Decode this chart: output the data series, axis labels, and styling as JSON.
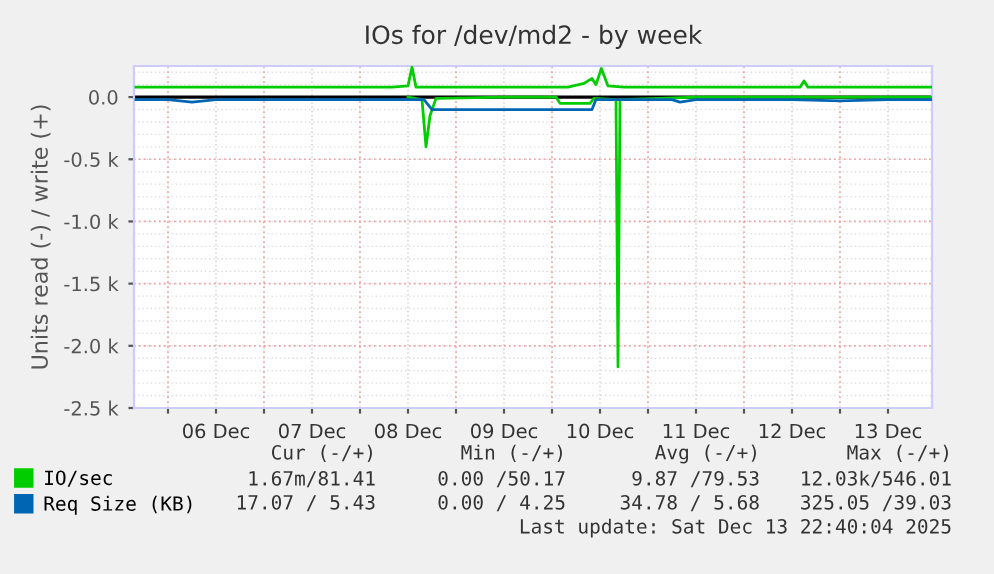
{
  "chart_data": {
    "type": "line",
    "title": "IOs for /dev/md2 - by week",
    "ylabel": "Units read (-) / write (+)",
    "series": [
      {
        "name": "IO/sec",
        "color": "#00cc00",
        "x": [
          "2025-12-05T16:00",
          "2025-12-06T00:00",
          "2025-12-06T08:00",
          "2025-12-06T16:00",
          "2025-12-07T00:00",
          "2025-12-07T08:00",
          "2025-12-07T16:00",
          "2025-12-08T00:00",
          "2025-12-08T08:00",
          "2025-12-08T12:00",
          "2025-12-08T13:00",
          "2025-12-08T14:00",
          "2025-12-08T20:00",
          "2025-12-09T04:00",
          "2025-12-09T12:00",
          "2025-12-09T20:00",
          "2025-12-10T04:00",
          "2025-12-10T08:00",
          "2025-12-10T10:00",
          "2025-12-10T11:00",
          "2025-12-10T12:20",
          "2025-12-10T14:00",
          "2025-12-10T18:00",
          "2025-12-11T00:00",
          "2025-12-11T08:00",
          "2025-12-11T16:00",
          "2025-12-12T00:00",
          "2025-12-12T08:00",
          "2025-12-12T14:00",
          "2025-12-12T15:00",
          "2025-12-12T16:00",
          "2025-12-13T00:00",
          "2025-12-13T08:00",
          "2025-12-13T16:00",
          "2025-12-13T22:40"
        ],
        "values": [
          80,
          80,
          80,
          80,
          80,
          80,
          80,
          80,
          80,
          90,
          240,
          80,
          80,
          80,
          80,
          80,
          80,
          110,
          150,
          100,
          230,
          90,
          80,
          80,
          80,
          80,
          80,
          80,
          80,
          130,
          80,
          80,
          80,
          80,
          80
        ]
      },
      {
        "color": "#00cc00",
        "x": [
          "2025-12-08T12:00",
          "2025-12-08T15:30",
          "2025-12-08T16:30",
          "2025-12-08T17:30",
          "2025-12-08T19:00",
          "2025-12-09T12:00",
          "2025-12-10T01:00",
          "2025-12-10T02:00",
          "2025-12-10T09:30",
          "2025-12-10T10:30",
          "2025-12-10T16:00",
          "2025-12-10T16:30",
          "2025-12-10T17:00",
          "2025-12-11T12:00",
          "2025-12-13T22:40"
        ],
        "values": [
          0,
          -20,
          -400,
          -150,
          -10,
          0,
          0,
          -50,
          -50,
          -10,
          -20,
          -2170,
          -20,
          0,
          0
        ]
      },
      {
        "name": "Req Size (KB)",
        "color": "#0066b3",
        "x": [
          "2025-12-05T16:00",
          "2025-12-06T00:00",
          "2025-12-06T06:00",
          "2025-12-06T12:00",
          "2025-12-07T00:00",
          "2025-12-07T12:00",
          "2025-12-08T00:00",
          "2025-12-08T12:00",
          "2025-12-08T16:00",
          "2025-12-08T18:00",
          "2025-12-09T06:00",
          "2025-12-09T18:00",
          "2025-12-10T06:00",
          "2025-12-10T10:00",
          "2025-12-10T11:00",
          "2025-12-10T20:00",
          "2025-12-11T06:00",
          "2025-12-11T08:00",
          "2025-12-11T12:00",
          "2025-12-12T00:00",
          "2025-12-12T12:00",
          "2025-12-13T00:00",
          "2025-12-13T12:00",
          "2025-12-13T22:40"
        ],
        "values": [
          -20,
          -20,
          -40,
          -20,
          -20,
          -20,
          -20,
          -20,
          -20,
          -100,
          -100,
          -100,
          -100,
          -100,
          -20,
          -20,
          -20,
          -40,
          -20,
          -20,
          -20,
          -30,
          -20,
          -20
        ]
      }
    ],
    "xlim": [
      "2025-12-05T15:30",
      "2025-12-13T23:00"
    ],
    "xticks": [
      {
        "value": "2025-12-06T00:00",
        "label": null
      },
      {
        "value": "2025-12-06T12:00",
        "label": "06 Dec"
      },
      {
        "value": "2025-12-07T00:00",
        "label": null
      },
      {
        "value": "2025-12-07T12:00",
        "label": "07 Dec"
      },
      {
        "value": "2025-12-08T00:00",
        "label": null
      },
      {
        "value": "2025-12-08T12:00",
        "label": "08 Dec"
      },
      {
        "value": "2025-12-09T00:00",
        "label": null
      },
      {
        "value": "2025-12-09T12:00",
        "label": "09 Dec"
      },
      {
        "value": "2025-12-10T00:00",
        "label": null
      },
      {
        "value": "2025-12-10T12:00",
        "label": "10 Dec"
      },
      {
        "value": "2025-12-11T00:00",
        "label": null
      },
      {
        "value": "2025-12-11T12:00",
        "label": "11 Dec"
      },
      {
        "value": "2025-12-12T00:00",
        "label": null
      },
      {
        "value": "2025-12-12T12:00",
        "label": "12 Dec"
      },
      {
        "value": "2025-12-13T00:00",
        "label": null
      },
      {
        "value": "2025-12-13T12:00",
        "label": "13 Dec"
      }
    ],
    "ylim": [
      -2500,
      250
    ],
    "yticks": [
      {
        "value": 0,
        "label": "0.0"
      },
      {
        "value": -500,
        "label": "-0.5 k"
      },
      {
        "value": -1000,
        "label": "-1.0 k"
      },
      {
        "value": -1500,
        "label": "-1.5 k"
      },
      {
        "value": -2000,
        "label": "-2.0 k"
      },
      {
        "value": -2500,
        "label": "-2.5 k"
      }
    ],
    "grid": true,
    "legend": "bottom",
    "annotations": [
      "Cur (-/+)",
      "Min (-/+)",
      "Avg (-/+)",
      "Max (-/+)",
      "1.67m/81.41",
      "0.00 /50.17",
      "9.87 /79.53",
      "12.03k/546.01",
      "17.07 / 5.43",
      "0.00 / 4.25",
      "34.78 / 5.68",
      "325.05 /39.03",
      "Last update: Sat Dec 13 22:40:04 2025"
    ]
  }
}
